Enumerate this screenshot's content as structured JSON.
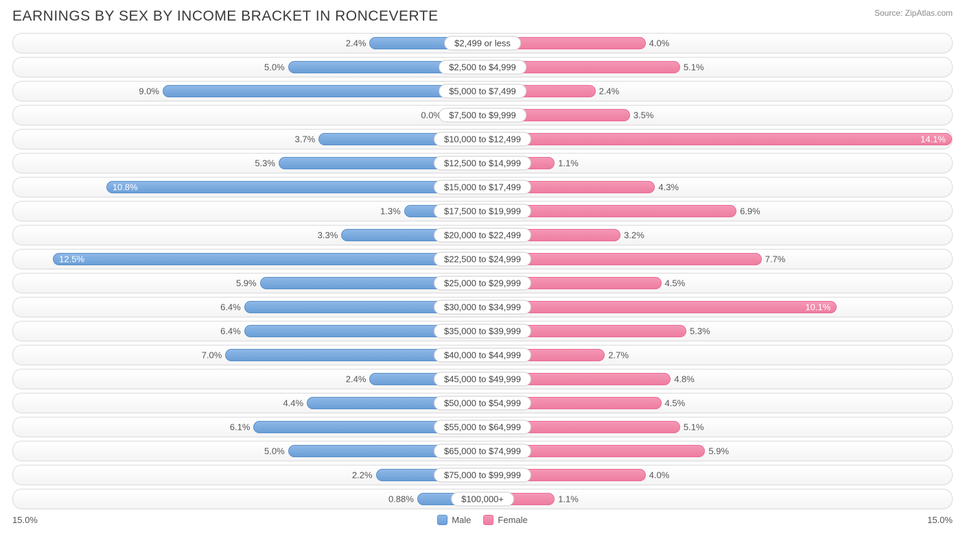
{
  "title": "EARNINGS BY SEX BY INCOME BRACKET IN RONCEVERTE",
  "source": "Source: ZipAtlas.com",
  "chart": {
    "type": "diverging-bar",
    "max_percent": 15.0,
    "axis_left_label": "15.0%",
    "axis_right_label": "15.0%",
    "male_color_top": "#8fb8e8",
    "male_color_bottom": "#6a9fd8",
    "male_border": "#5a8fc8",
    "female_color_top": "#f598b5",
    "female_color_bottom": "#ee7da0",
    "female_border": "#e86d92",
    "row_bg_top": "#ffffff",
    "row_bg_bottom": "#f4f4f4",
    "row_border": "#d9d9d9",
    "label_bg": "#ffffff",
    "label_border": "#cccccc",
    "text_color": "#555555",
    "title_color": "#3a3a3a",
    "inside_label_threshold": 10.0,
    "categories": [
      {
        "label": "$2,499 or less",
        "male": 2.4,
        "male_label": "2.4%",
        "female": 4.0,
        "female_label": "4.0%"
      },
      {
        "label": "$2,500 to $4,999",
        "male": 5.0,
        "male_label": "5.0%",
        "female": 5.1,
        "female_label": "5.1%"
      },
      {
        "label": "$5,000 to $7,499",
        "male": 9.0,
        "male_label": "9.0%",
        "female": 2.4,
        "female_label": "2.4%"
      },
      {
        "label": "$7,500 to $9,999",
        "male": 0.0,
        "male_label": "0.0%",
        "female": 3.5,
        "female_label": "3.5%"
      },
      {
        "label": "$10,000 to $12,499",
        "male": 3.7,
        "male_label": "3.7%",
        "female": 14.1,
        "female_label": "14.1%"
      },
      {
        "label": "$12,500 to $14,999",
        "male": 5.3,
        "male_label": "5.3%",
        "female": 1.1,
        "female_label": "1.1%"
      },
      {
        "label": "$15,000 to $17,499",
        "male": 10.8,
        "male_label": "10.8%",
        "female": 4.3,
        "female_label": "4.3%"
      },
      {
        "label": "$17,500 to $19,999",
        "male": 1.3,
        "male_label": "1.3%",
        "female": 6.9,
        "female_label": "6.9%"
      },
      {
        "label": "$20,000 to $22,499",
        "male": 3.3,
        "male_label": "3.3%",
        "female": 3.2,
        "female_label": "3.2%"
      },
      {
        "label": "$22,500 to $24,999",
        "male": 12.5,
        "male_label": "12.5%",
        "female": 7.7,
        "female_label": "7.7%"
      },
      {
        "label": "$25,000 to $29,999",
        "male": 5.9,
        "male_label": "5.9%",
        "female": 4.5,
        "female_label": "4.5%"
      },
      {
        "label": "$30,000 to $34,999",
        "male": 6.4,
        "male_label": "6.4%",
        "female": 10.1,
        "female_label": "10.1%"
      },
      {
        "label": "$35,000 to $39,999",
        "male": 6.4,
        "male_label": "6.4%",
        "female": 5.3,
        "female_label": "5.3%"
      },
      {
        "label": "$40,000 to $44,999",
        "male": 7.0,
        "male_label": "7.0%",
        "female": 2.7,
        "female_label": "2.7%"
      },
      {
        "label": "$45,000 to $49,999",
        "male": 2.4,
        "male_label": "2.4%",
        "female": 4.8,
        "female_label": "4.8%"
      },
      {
        "label": "$50,000 to $54,999",
        "male": 4.4,
        "male_label": "4.4%",
        "female": 4.5,
        "female_label": "4.5%"
      },
      {
        "label": "$55,000 to $64,999",
        "male": 6.1,
        "male_label": "6.1%",
        "female": 5.1,
        "female_label": "5.1%"
      },
      {
        "label": "$65,000 to $74,999",
        "male": 5.0,
        "male_label": "5.0%",
        "female": 5.9,
        "female_label": "5.9%"
      },
      {
        "label": "$75,000 to $99,999",
        "male": 2.2,
        "male_label": "2.2%",
        "female": 4.0,
        "female_label": "4.0%"
      },
      {
        "label": "$100,000+",
        "male": 0.88,
        "male_label": "0.88%",
        "female": 1.1,
        "female_label": "1.1%"
      }
    ]
  },
  "legend": {
    "male": "Male",
    "female": "Female"
  }
}
